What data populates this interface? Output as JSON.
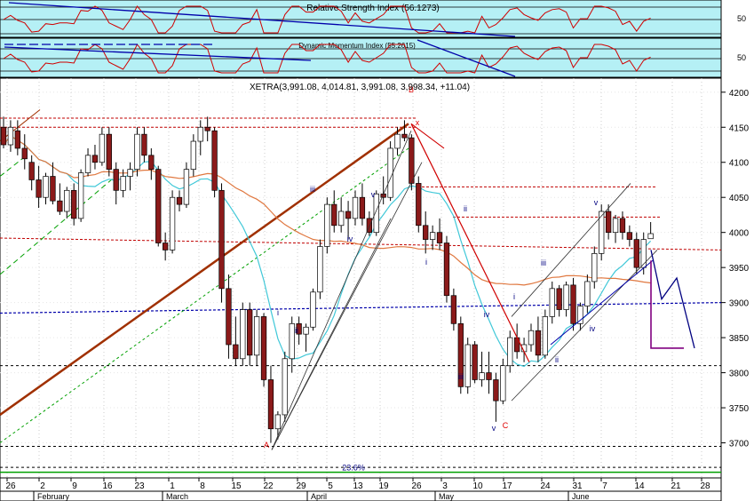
{
  "chart_data": [
    {
      "type": "line",
      "panel": "rsi",
      "title": "Relative Strength Index (56.1273)",
      "axis_ticks": [
        50
      ],
      "ylim": [
        0,
        100
      ],
      "colors": {
        "background": "#b5f0f5",
        "series": "#d00000",
        "trendline": "#0000aa",
        "level": "#000000"
      }
    },
    {
      "type": "line",
      "panel": "momentum",
      "title": "Dynamic Momentum Index (55.2615)",
      "axis_ticks": [
        50
      ],
      "ylim": [
        0,
        100
      ],
      "colors": {
        "background": "#b5f0f5",
        "series": "#d00000",
        "trendline": "#0000aa",
        "level": "#000000"
      }
    },
    {
      "type": "candlestick",
      "panel": "price",
      "title": "XETRA(3,991.08, 4,014.81, 3,991.08, 3,998.34, +11.04)",
      "ylim": [
        3650,
        4220
      ],
      "y_ticks": [
        3700,
        3750,
        3800,
        3850,
        3900,
        3950,
        4000,
        4050,
        4100,
        4150,
        4200
      ],
      "x_tick_labels": [
        "26",
        "2",
        "9",
        "16",
        "23",
        "1",
        "8",
        "15",
        "22",
        "29",
        "5",
        "13",
        "19",
        "26",
        "3",
        "10",
        "17",
        "24",
        "31",
        "7",
        "14",
        "21",
        "28"
      ],
      "month_labels": [
        "February",
        "March",
        "April",
        "May",
        "June"
      ],
      "candles_first_to_last": [
        [
          4150,
          4165,
          4120,
          4125
        ],
        [
          4125,
          4160,
          4115,
          4150
        ],
        [
          4145,
          4160,
          4110,
          4120
        ],
        [
          4120,
          4140,
          4090,
          4105
        ],
        [
          4100,
          4110,
          4060,
          4075
        ],
        [
          4075,
          4095,
          4035,
          4050
        ],
        [
          4050,
          4085,
          4040,
          4080
        ],
        [
          4080,
          4100,
          4040,
          4045
        ],
        [
          4045,
          4070,
          4025,
          4030
        ],
        [
          4030,
          4065,
          4020,
          4060
        ],
        [
          4060,
          4070,
          4010,
          4020
        ],
        [
          4020,
          4090,
          4015,
          4085
        ],
        [
          4085,
          4120,
          4080,
          4110
        ],
        [
          4110,
          4125,
          4090,
          4100
        ],
        [
          4100,
          4150,
          4095,
          4140
        ],
        [
          4140,
          4150,
          4080,
          4090
        ],
        [
          4090,
          4100,
          4040,
          4060
        ],
        [
          4060,
          4090,
          4050,
          4080
        ],
        [
          4080,
          4100,
          4060,
          4090
        ],
        [
          4090,
          4150,
          4080,
          4140
        ],
        [
          4140,
          4150,
          4100,
          4110
        ],
        [
          4110,
          4120,
          4075,
          4090
        ],
        [
          4090,
          4095,
          3980,
          3985
        ],
        [
          3985,
          4000,
          3960,
          3975
        ],
        [
          3975,
          4060,
          3970,
          4050
        ],
        [
          4050,
          4060,
          4030,
          4040
        ],
        [
          4040,
          4100,
          4035,
          4090
        ],
        [
          4090,
          4140,
          4080,
          4130
        ],
        [
          4130,
          4160,
          4110,
          4150
        ],
        [
          4150,
          4165,
          4130,
          4145
        ],
        [
          4145,
          4150,
          4050,
          4060
        ],
        [
          4060,
          4070,
          3900,
          3920
        ],
        [
          3920,
          3940,
          3820,
          3840
        ],
        [
          3840,
          3880,
          3810,
          3820
        ],
        [
          3820,
          3900,
          3810,
          3890
        ],
        [
          3890,
          3900,
          3810,
          3825
        ],
        [
          3825,
          3890,
          3810,
          3880
        ],
        [
          3880,
          3885,
          3780,
          3790
        ],
        [
          3790,
          3810,
          3700,
          3720
        ],
        [
          3720,
          3745,
          3705,
          3740
        ],
        [
          3740,
          3830,
          3730,
          3820
        ],
        [
          3820,
          3880,
          3800,
          3870
        ],
        [
          3870,
          3880,
          3840,
          3855
        ],
        [
          3855,
          3870,
          3830,
          3865
        ],
        [
          3865,
          3920,
          3860,
          3915
        ],
        [
          3915,
          3990,
          3905,
          3980
        ],
        [
          3980,
          4050,
          3970,
          4040
        ],
        [
          4040,
          4060,
          4000,
          4010
        ],
        [
          4010,
          4050,
          4000,
          4030
        ],
        [
          4030,
          4045,
          3990,
          4020
        ],
        [
          4020,
          4060,
          4010,
          4050
        ],
        [
          4050,
          4070,
          4010,
          4020
        ],
        [
          4020,
          4030,
          3995,
          4000
        ],
        [
          4000,
          4060,
          3995,
          4055
        ],
        [
          4055,
          4080,
          4040,
          4050
        ],
        [
          4050,
          4130,
          4045,
          4120
        ],
        [
          4120,
          4150,
          4110,
          4140
        ],
        [
          4140,
          4160,
          4130,
          4135
        ],
        [
          4135,
          4140,
          4060,
          4070
        ],
        [
          4070,
          4080,
          4000,
          4010
        ],
        [
          4010,
          4030,
          3970,
          3990
        ],
        [
          3990,
          4010,
          3975,
          4000
        ],
        [
          4000,
          4020,
          3975,
          3985
        ],
        [
          3985,
          3995,
          3900,
          3910
        ],
        [
          3910,
          3920,
          3860,
          3870
        ],
        [
          3870,
          3880,
          3770,
          3780
        ],
        [
          3780,
          3850,
          3770,
          3840
        ],
        [
          3840,
          3845,
          3785,
          3790
        ],
        [
          3790,
          3830,
          3780,
          3800
        ],
        [
          3800,
          3830,
          3770,
          3790
        ],
        [
          3790,
          3800,
          3730,
          3760
        ],
        [
          3760,
          3820,
          3755,
          3810
        ],
        [
          3810,
          3860,
          3800,
          3850
        ],
        [
          3850,
          3870,
          3820,
          3830
        ],
        [
          3830,
          3850,
          3815,
          3840
        ],
        [
          3840,
          3870,
          3830,
          3860
        ],
        [
          3860,
          3880,
          3815,
          3825
        ],
        [
          3825,
          3890,
          3820,
          3880
        ],
        [
          3880,
          3930,
          3870,
          3920
        ],
        [
          3920,
          3925,
          3880,
          3890
        ],
        [
          3890,
          3930,
          3880,
          3925
        ],
        [
          3925,
          3935,
          3860,
          3870
        ],
        [
          3870,
          3900,
          3860,
          3895
        ],
        [
          3895,
          3940,
          3885,
          3930
        ],
        [
          3930,
          3980,
          3920,
          3970
        ],
        [
          3970,
          4040,
          3960,
          4030
        ],
        [
          4030,
          4040,
          3990,
          4000
        ],
        [
          4000,
          4025,
          3985,
          4020
        ],
        [
          4020,
          4030,
          3990,
          4000
        ],
        [
          4000,
          4010,
          3980,
          3990
        ],
        [
          3990,
          4000,
          3940,
          3950
        ],
        [
          3950,
          4000,
          3940,
          3990
        ],
        [
          3991.08,
          4014.81,
          3991.08,
          3998.34
        ]
      ],
      "wave_labels": [
        {
          "text": "A",
          "color": "#e00000"
        },
        {
          "text": "B",
          "color": "#e00000"
        },
        {
          "text": "C",
          "color": "#e00000"
        },
        {
          "text": "x",
          "color": "#e00000"
        },
        {
          "text": "i",
          "color": "#000080"
        },
        {
          "text": "ii",
          "color": "#000080"
        },
        {
          "text": "iii",
          "color": "#000080"
        },
        {
          "text": "iv",
          "color": "#000080"
        },
        {
          "text": "v",
          "color": "#000080"
        },
        {
          "text": "i",
          "color": "#000080"
        },
        {
          "text": "ii",
          "color": "#000080"
        },
        {
          "text": "iii",
          "color": "#000080"
        },
        {
          "text": "iv",
          "color": "#000080"
        },
        {
          "text": "v",
          "color": "#000080"
        },
        {
          "text": "i",
          "color": "#000080"
        },
        {
          "text": "ii",
          "color": "#000080"
        },
        {
          "text": "iii",
          "color": "#000080"
        },
        {
          "text": "iv",
          "color": "#000080"
        },
        {
          "text": "v",
          "color": "#000080"
        }
      ],
      "fib_label": "23.6%",
      "colors": {
        "bull_candle": "#ffffff",
        "bear_candle": "#8b1a1a",
        "candle_border": "#000000",
        "ma_short": "#40c8d8",
        "ma_long": "#e07840",
        "channel": "#a03000",
        "dashed_red": "#c00000",
        "dashed_blue": "#0000aa",
        "dashed_black": "#000000",
        "green": "#00a000",
        "projection": "#000080",
        "projection_box": "#800080"
      }
    }
  ]
}
